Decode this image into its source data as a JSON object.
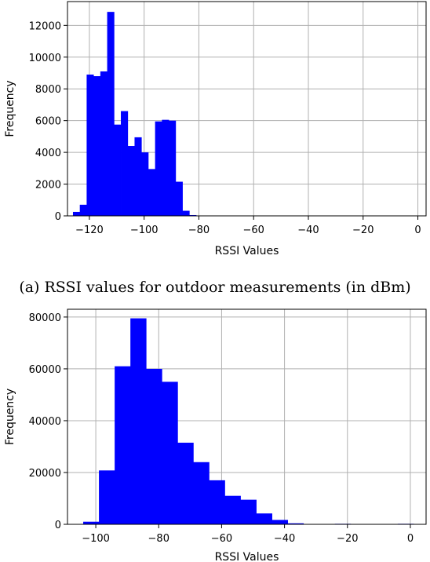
{
  "chart_data": [
    {
      "type": "bar",
      "subplot": "top",
      "xlabel": "RSSI Values",
      "ylabel": "Frequency",
      "caption": "(a) RSSI values for outdoor measurements (in dBm)",
      "xlim": [
        -128,
        3
      ],
      "ylim": [
        0,
        13500
      ],
      "xticks": [
        -120,
        -100,
        -80,
        -60,
        -40,
        -20,
        0
      ],
      "yticks": [
        0,
        2000,
        4000,
        6000,
        8000,
        10000,
        12000
      ],
      "grid": true,
      "bin_width": 2.5,
      "bins": [
        {
          "x0": -126,
          "y": 250
        },
        {
          "x0": -123.5,
          "y": 700
        },
        {
          "x0": -121,
          "y": 8900
        },
        {
          "x0": -118.5,
          "y": 8800
        },
        {
          "x0": -116,
          "y": 9100
        },
        {
          "x0": -113.5,
          "y": 12850
        },
        {
          "x0": -111,
          "y": 5750
        },
        {
          "x0": -108.5,
          "y": 6600
        },
        {
          "x0": -106,
          "y": 4400
        },
        {
          "x0": -103.5,
          "y": 4950
        },
        {
          "x0": -101,
          "y": 4000
        },
        {
          "x0": -98.5,
          "y": 2950
        },
        {
          "x0": -96,
          "y": 5950
        },
        {
          "x0": -93.5,
          "y": 6050
        },
        {
          "x0": -91,
          "y": 6000
        },
        {
          "x0": -88.5,
          "y": 2150
        },
        {
          "x0": -86,
          "y": 320
        },
        {
          "x0": -83.5,
          "y": 50
        }
      ]
    },
    {
      "type": "bar",
      "subplot": "bottom",
      "xlabel": "RSSI Values",
      "ylabel": "Frequency",
      "xlim": [
        -109,
        5
      ],
      "ylim": [
        0,
        83000
      ],
      "xticks": [
        -100,
        -80,
        -60,
        -40,
        -20,
        0
      ],
      "yticks": [
        0,
        20000,
        40000,
        60000,
        80000
      ],
      "grid": true,
      "bin_width": 5,
      "bins": [
        {
          "x0": -104,
          "y": 1000
        },
        {
          "x0": -99,
          "y": 20800
        },
        {
          "x0": -94,
          "y": 61000
        },
        {
          "x0": -89,
          "y": 79500
        },
        {
          "x0": -84,
          "y": 60000
        },
        {
          "x0": -79,
          "y": 55000
        },
        {
          "x0": -74,
          "y": 31500
        },
        {
          "x0": -69,
          "y": 24000
        },
        {
          "x0": -64,
          "y": 17000
        },
        {
          "x0": -59,
          "y": 11000
        },
        {
          "x0": -54,
          "y": 9500
        },
        {
          "x0": -49,
          "y": 4200
        },
        {
          "x0": -44,
          "y": 1700
        },
        {
          "x0": -39,
          "y": 400
        },
        {
          "x0": -34,
          "y": 120
        },
        {
          "x0": -29,
          "y": 60
        },
        {
          "x0": -24,
          "y": 200
        },
        {
          "x0": -19,
          "y": 120
        },
        {
          "x0": -4,
          "y": 200
        }
      ]
    }
  ]
}
